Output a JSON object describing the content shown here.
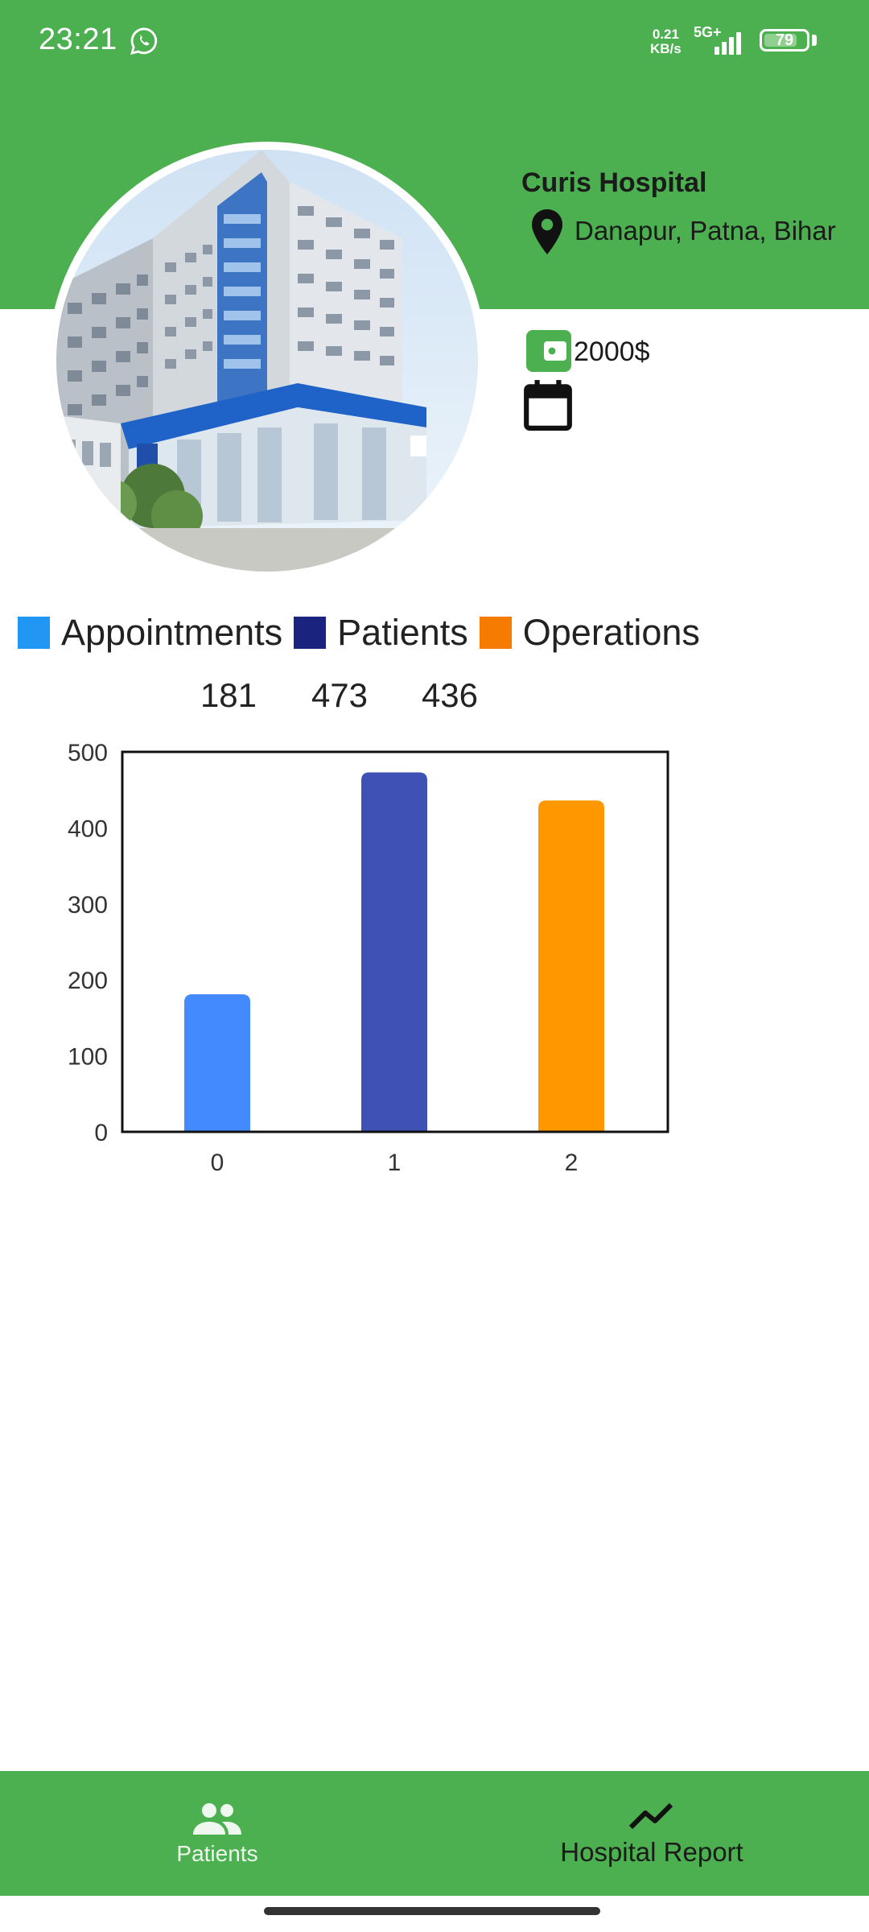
{
  "status_bar": {
    "time": "23:21",
    "net_speed_value": "0.21",
    "net_speed_unit": "KB/s",
    "net_type": "5G+",
    "battery": "79",
    "icons": [
      "whatsapp-icon",
      "signal-icon",
      "battery-icon"
    ]
  },
  "hospital": {
    "name": "Curis Hospital",
    "location": "Danapur, Patna, Bihar",
    "fee": "2000$",
    "icons": [
      "location-pin-icon",
      "wallet-icon",
      "calendar-icon"
    ]
  },
  "legend": [
    {
      "label": "Appointments",
      "color": "#2196f3"
    },
    {
      "label": "Patients",
      "color": "#1a237e"
    },
    {
      "label": "Operations",
      "color": "#f57c00"
    }
  ],
  "chart_data": {
    "type": "bar",
    "categories": [
      "0",
      "1",
      "2"
    ],
    "values": [
      181,
      473,
      436
    ],
    "value_labels": [
      "181",
      "473",
      "436"
    ],
    "bar_colors": [
      "#448aff",
      "#3f51b5",
      "#ff9800"
    ],
    "ylim": [
      0,
      500
    ],
    "yticks": [
      "0",
      "100",
      "200",
      "300",
      "400",
      "500"
    ],
    "xlabel": "",
    "ylabel": "",
    "title": ""
  },
  "bottom_nav": {
    "items": [
      {
        "label": "Patients",
        "icon": "people-icon"
      },
      {
        "label": "Hospital Report",
        "icon": "trending-up-icon"
      }
    ]
  },
  "colors": {
    "primary": "#4caf50"
  }
}
